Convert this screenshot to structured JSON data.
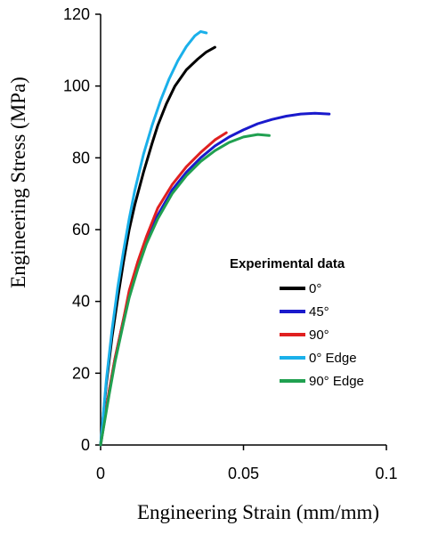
{
  "chart_data": {
    "type": "line",
    "xlabel": "Engineering Strain (mm/mm)",
    "ylabel": "Engineering Stress (MPa)",
    "xlim": [
      0,
      0.1
    ],
    "ylim": [
      0,
      120
    ],
    "xticks": [
      0,
      0.05,
      0.1
    ],
    "xtick_labels": [
      "0",
      "0.05",
      "0.1"
    ],
    "yticks": [
      0,
      20,
      40,
      60,
      80,
      100,
      120
    ],
    "ytick_labels": [
      "0",
      "20",
      "40",
      "60",
      "80",
      "100",
      "120"
    ],
    "grid": false,
    "legend": {
      "title": "Experimental data",
      "placement": "right"
    },
    "series": [
      {
        "name": "0°",
        "color": "#000000",
        "x": [
          0,
          0.002,
          0.004,
          0.006,
          0.008,
          0.01,
          0.012,
          0.015,
          0.018,
          0.02,
          0.023,
          0.026,
          0.03,
          0.034,
          0.037,
          0.04
        ],
        "y": [
          0,
          17,
          30,
          41,
          51,
          60,
          67,
          76,
          84,
          89,
          95,
          100,
          104.5,
          107.5,
          109.5,
          110.8
        ]
      },
      {
        "name": "45°",
        "color": "#1a1acc",
        "x": [
          0,
          0.003,
          0.005,
          0.008,
          0.01,
          0.013,
          0.016,
          0.02,
          0.025,
          0.03,
          0.035,
          0.04,
          0.045,
          0.05,
          0.055,
          0.06,
          0.065,
          0.07,
          0.075,
          0.08
        ],
        "y": [
          0,
          15,
          24,
          35,
          42,
          50,
          57,
          64,
          71,
          76,
          80,
          83.3,
          85.8,
          87.8,
          89.5,
          90.7,
          91.6,
          92.2,
          92.4,
          92.2
        ]
      },
      {
        "name": "90°",
        "color": "#e02020",
        "x": [
          0,
          0.003,
          0.005,
          0.008,
          0.01,
          0.013,
          0.016,
          0.02,
          0.025,
          0.03,
          0.035,
          0.04,
          0.044
        ],
        "y": [
          0,
          15,
          24,
          35,
          43,
          51,
          58,
          66,
          72.5,
          77.5,
          81.5,
          85,
          87
        ]
      },
      {
        "name": "0° Edge",
        "color": "#1ab0ea",
        "x": [
          0,
          0.002,
          0.004,
          0.006,
          0.008,
          0.01,
          0.012,
          0.015,
          0.018,
          0.021,
          0.024,
          0.027,
          0.03,
          0.033,
          0.035,
          0.037
        ],
        "y": [
          0,
          18,
          32,
          44,
          54,
          63,
          71,
          81,
          89,
          96,
          102,
          107,
          111,
          114,
          115.2,
          114.8
        ]
      },
      {
        "name": "90° Edge",
        "color": "#20a050",
        "x": [
          0,
          0.003,
          0.005,
          0.008,
          0.01,
          0.013,
          0.016,
          0.02,
          0.025,
          0.03,
          0.035,
          0.04,
          0.045,
          0.05,
          0.055,
          0.059
        ],
        "y": [
          0,
          14,
          23,
          34,
          41,
          49,
          56,
          63,
          70,
          75,
          79,
          82,
          84.3,
          85.8,
          86.5,
          86.2
        ]
      }
    ]
  }
}
